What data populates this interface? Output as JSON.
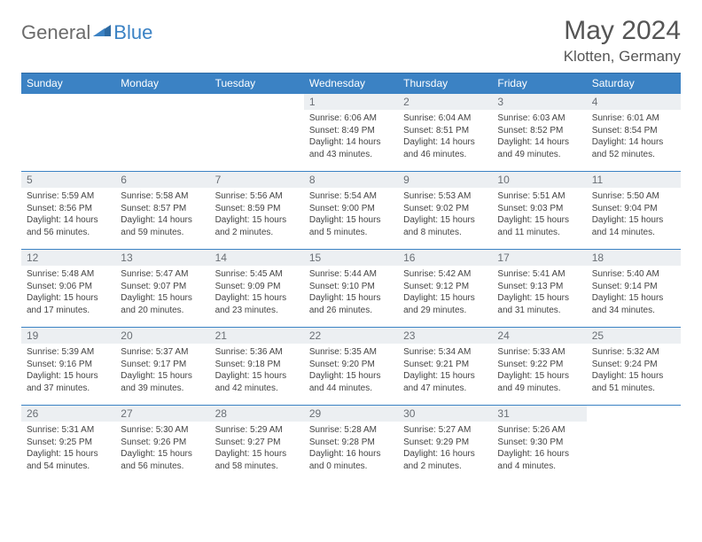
{
  "logo": {
    "general": "General",
    "blue": "Blue"
  },
  "title": "May 2024",
  "location": "Klotten, Germany",
  "colors": {
    "header_bg": "#3b82c4",
    "header_text": "#ffffff",
    "row_border": "#3b82c4",
    "daynum_bg": "#eceff2",
    "daynum_text": "#6a6f75",
    "body_text": "#444444",
    "page_bg": "#ffffff",
    "title_text": "#555555",
    "logo_gray": "#6b6b6b",
    "logo_blue": "#3b82c4"
  },
  "typography": {
    "title_fontsize": 30,
    "location_fontsize": 17,
    "header_fontsize": 12,
    "daynum_fontsize": 12,
    "body_fontsize": 10
  },
  "calendar": {
    "type": "table",
    "columns": [
      "Sunday",
      "Monday",
      "Tuesday",
      "Wednesday",
      "Thursday",
      "Friday",
      "Saturday"
    ],
    "weeks": [
      [
        null,
        null,
        null,
        {
          "day": "1",
          "sunrise": "6:06 AM",
          "sunset": "8:49 PM",
          "daylight": "14 hours and 43 minutes."
        },
        {
          "day": "2",
          "sunrise": "6:04 AM",
          "sunset": "8:51 PM",
          "daylight": "14 hours and 46 minutes."
        },
        {
          "day": "3",
          "sunrise": "6:03 AM",
          "sunset": "8:52 PM",
          "daylight": "14 hours and 49 minutes."
        },
        {
          "day": "4",
          "sunrise": "6:01 AM",
          "sunset": "8:54 PM",
          "daylight": "14 hours and 52 minutes."
        }
      ],
      [
        {
          "day": "5",
          "sunrise": "5:59 AM",
          "sunset": "8:56 PM",
          "daylight": "14 hours and 56 minutes."
        },
        {
          "day": "6",
          "sunrise": "5:58 AM",
          "sunset": "8:57 PM",
          "daylight": "14 hours and 59 minutes."
        },
        {
          "day": "7",
          "sunrise": "5:56 AM",
          "sunset": "8:59 PM",
          "daylight": "15 hours and 2 minutes."
        },
        {
          "day": "8",
          "sunrise": "5:54 AM",
          "sunset": "9:00 PM",
          "daylight": "15 hours and 5 minutes."
        },
        {
          "day": "9",
          "sunrise": "5:53 AM",
          "sunset": "9:02 PM",
          "daylight": "15 hours and 8 minutes."
        },
        {
          "day": "10",
          "sunrise": "5:51 AM",
          "sunset": "9:03 PM",
          "daylight": "15 hours and 11 minutes."
        },
        {
          "day": "11",
          "sunrise": "5:50 AM",
          "sunset": "9:04 PM",
          "daylight": "15 hours and 14 minutes."
        }
      ],
      [
        {
          "day": "12",
          "sunrise": "5:48 AM",
          "sunset": "9:06 PM",
          "daylight": "15 hours and 17 minutes."
        },
        {
          "day": "13",
          "sunrise": "5:47 AM",
          "sunset": "9:07 PM",
          "daylight": "15 hours and 20 minutes."
        },
        {
          "day": "14",
          "sunrise": "5:45 AM",
          "sunset": "9:09 PM",
          "daylight": "15 hours and 23 minutes."
        },
        {
          "day": "15",
          "sunrise": "5:44 AM",
          "sunset": "9:10 PM",
          "daylight": "15 hours and 26 minutes."
        },
        {
          "day": "16",
          "sunrise": "5:42 AM",
          "sunset": "9:12 PM",
          "daylight": "15 hours and 29 minutes."
        },
        {
          "day": "17",
          "sunrise": "5:41 AM",
          "sunset": "9:13 PM",
          "daylight": "15 hours and 31 minutes."
        },
        {
          "day": "18",
          "sunrise": "5:40 AM",
          "sunset": "9:14 PM",
          "daylight": "15 hours and 34 minutes."
        }
      ],
      [
        {
          "day": "19",
          "sunrise": "5:39 AM",
          "sunset": "9:16 PM",
          "daylight": "15 hours and 37 minutes."
        },
        {
          "day": "20",
          "sunrise": "5:37 AM",
          "sunset": "9:17 PM",
          "daylight": "15 hours and 39 minutes."
        },
        {
          "day": "21",
          "sunrise": "5:36 AM",
          "sunset": "9:18 PM",
          "daylight": "15 hours and 42 minutes."
        },
        {
          "day": "22",
          "sunrise": "5:35 AM",
          "sunset": "9:20 PM",
          "daylight": "15 hours and 44 minutes."
        },
        {
          "day": "23",
          "sunrise": "5:34 AM",
          "sunset": "9:21 PM",
          "daylight": "15 hours and 47 minutes."
        },
        {
          "day": "24",
          "sunrise": "5:33 AM",
          "sunset": "9:22 PM",
          "daylight": "15 hours and 49 minutes."
        },
        {
          "day": "25",
          "sunrise": "5:32 AM",
          "sunset": "9:24 PM",
          "daylight": "15 hours and 51 minutes."
        }
      ],
      [
        {
          "day": "26",
          "sunrise": "5:31 AM",
          "sunset": "9:25 PM",
          "daylight": "15 hours and 54 minutes."
        },
        {
          "day": "27",
          "sunrise": "5:30 AM",
          "sunset": "9:26 PM",
          "daylight": "15 hours and 56 minutes."
        },
        {
          "day": "28",
          "sunrise": "5:29 AM",
          "sunset": "9:27 PM",
          "daylight": "15 hours and 58 minutes."
        },
        {
          "day": "29",
          "sunrise": "5:28 AM",
          "sunset": "9:28 PM",
          "daylight": "16 hours and 0 minutes."
        },
        {
          "day": "30",
          "sunrise": "5:27 AM",
          "sunset": "9:29 PM",
          "daylight": "16 hours and 2 minutes."
        },
        {
          "day": "31",
          "sunrise": "5:26 AM",
          "sunset": "9:30 PM",
          "daylight": "16 hours and 4 minutes."
        },
        null
      ]
    ]
  },
  "labels": {
    "sunrise_prefix": "Sunrise: ",
    "sunset_prefix": "Sunset: ",
    "daylight_prefix": "Daylight: "
  }
}
